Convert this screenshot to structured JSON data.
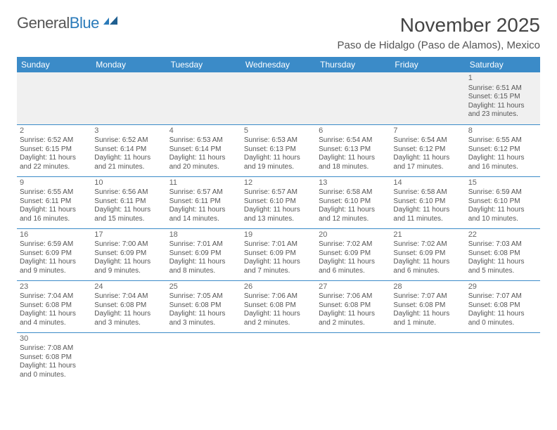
{
  "logo": {
    "general": "General",
    "blue": "Blue"
  },
  "title": "November 2025",
  "location": "Paso de Hidalgo (Paso de Alamos), Mexico",
  "colors": {
    "header_bg": "#3b8bc8",
    "header_fg": "#ffffff",
    "rule": "#3b8bc8",
    "blank_bg": "#f0f0f0",
    "text": "#555555",
    "title_text": "#444444",
    "logo_gray": "#555555",
    "logo_blue": "#2a7ab9"
  },
  "weekdays": [
    "Sunday",
    "Monday",
    "Tuesday",
    "Wednesday",
    "Thursday",
    "Friday",
    "Saturday"
  ],
  "weeks": [
    [
      null,
      null,
      null,
      null,
      null,
      null,
      {
        "n": "1",
        "sr": "Sunrise: 6:51 AM",
        "ss": "Sunset: 6:15 PM",
        "dl": "Daylight: 11 hours and 23 minutes."
      }
    ],
    [
      {
        "n": "2",
        "sr": "Sunrise: 6:52 AM",
        "ss": "Sunset: 6:15 PM",
        "dl": "Daylight: 11 hours and 22 minutes."
      },
      {
        "n": "3",
        "sr": "Sunrise: 6:52 AM",
        "ss": "Sunset: 6:14 PM",
        "dl": "Daylight: 11 hours and 21 minutes."
      },
      {
        "n": "4",
        "sr": "Sunrise: 6:53 AM",
        "ss": "Sunset: 6:14 PM",
        "dl": "Daylight: 11 hours and 20 minutes."
      },
      {
        "n": "5",
        "sr": "Sunrise: 6:53 AM",
        "ss": "Sunset: 6:13 PM",
        "dl": "Daylight: 11 hours and 19 minutes."
      },
      {
        "n": "6",
        "sr": "Sunrise: 6:54 AM",
        "ss": "Sunset: 6:13 PM",
        "dl": "Daylight: 11 hours and 18 minutes."
      },
      {
        "n": "7",
        "sr": "Sunrise: 6:54 AM",
        "ss": "Sunset: 6:12 PM",
        "dl": "Daylight: 11 hours and 17 minutes."
      },
      {
        "n": "8",
        "sr": "Sunrise: 6:55 AM",
        "ss": "Sunset: 6:12 PM",
        "dl": "Daylight: 11 hours and 16 minutes."
      }
    ],
    [
      {
        "n": "9",
        "sr": "Sunrise: 6:55 AM",
        "ss": "Sunset: 6:11 PM",
        "dl": "Daylight: 11 hours and 16 minutes."
      },
      {
        "n": "10",
        "sr": "Sunrise: 6:56 AM",
        "ss": "Sunset: 6:11 PM",
        "dl": "Daylight: 11 hours and 15 minutes."
      },
      {
        "n": "11",
        "sr": "Sunrise: 6:57 AM",
        "ss": "Sunset: 6:11 PM",
        "dl": "Daylight: 11 hours and 14 minutes."
      },
      {
        "n": "12",
        "sr": "Sunrise: 6:57 AM",
        "ss": "Sunset: 6:10 PM",
        "dl": "Daylight: 11 hours and 13 minutes."
      },
      {
        "n": "13",
        "sr": "Sunrise: 6:58 AM",
        "ss": "Sunset: 6:10 PM",
        "dl": "Daylight: 11 hours and 12 minutes."
      },
      {
        "n": "14",
        "sr": "Sunrise: 6:58 AM",
        "ss": "Sunset: 6:10 PM",
        "dl": "Daylight: 11 hours and 11 minutes."
      },
      {
        "n": "15",
        "sr": "Sunrise: 6:59 AM",
        "ss": "Sunset: 6:10 PM",
        "dl": "Daylight: 11 hours and 10 minutes."
      }
    ],
    [
      {
        "n": "16",
        "sr": "Sunrise: 6:59 AM",
        "ss": "Sunset: 6:09 PM",
        "dl": "Daylight: 11 hours and 9 minutes."
      },
      {
        "n": "17",
        "sr": "Sunrise: 7:00 AM",
        "ss": "Sunset: 6:09 PM",
        "dl": "Daylight: 11 hours and 9 minutes."
      },
      {
        "n": "18",
        "sr": "Sunrise: 7:01 AM",
        "ss": "Sunset: 6:09 PM",
        "dl": "Daylight: 11 hours and 8 minutes."
      },
      {
        "n": "19",
        "sr": "Sunrise: 7:01 AM",
        "ss": "Sunset: 6:09 PM",
        "dl": "Daylight: 11 hours and 7 minutes."
      },
      {
        "n": "20",
        "sr": "Sunrise: 7:02 AM",
        "ss": "Sunset: 6:09 PM",
        "dl": "Daylight: 11 hours and 6 minutes."
      },
      {
        "n": "21",
        "sr": "Sunrise: 7:02 AM",
        "ss": "Sunset: 6:09 PM",
        "dl": "Daylight: 11 hours and 6 minutes."
      },
      {
        "n": "22",
        "sr": "Sunrise: 7:03 AM",
        "ss": "Sunset: 6:08 PM",
        "dl": "Daylight: 11 hours and 5 minutes."
      }
    ],
    [
      {
        "n": "23",
        "sr": "Sunrise: 7:04 AM",
        "ss": "Sunset: 6:08 PM",
        "dl": "Daylight: 11 hours and 4 minutes."
      },
      {
        "n": "24",
        "sr": "Sunrise: 7:04 AM",
        "ss": "Sunset: 6:08 PM",
        "dl": "Daylight: 11 hours and 3 minutes."
      },
      {
        "n": "25",
        "sr": "Sunrise: 7:05 AM",
        "ss": "Sunset: 6:08 PM",
        "dl": "Daylight: 11 hours and 3 minutes."
      },
      {
        "n": "26",
        "sr": "Sunrise: 7:06 AM",
        "ss": "Sunset: 6:08 PM",
        "dl": "Daylight: 11 hours and 2 minutes."
      },
      {
        "n": "27",
        "sr": "Sunrise: 7:06 AM",
        "ss": "Sunset: 6:08 PM",
        "dl": "Daylight: 11 hours and 2 minutes."
      },
      {
        "n": "28",
        "sr": "Sunrise: 7:07 AM",
        "ss": "Sunset: 6:08 PM",
        "dl": "Daylight: 11 hours and 1 minute."
      },
      {
        "n": "29",
        "sr": "Sunrise: 7:07 AM",
        "ss": "Sunset: 6:08 PM",
        "dl": "Daylight: 11 hours and 0 minutes."
      }
    ],
    [
      {
        "n": "30",
        "sr": "Sunrise: 7:08 AM",
        "ss": "Sunset: 6:08 PM",
        "dl": "Daylight: 11 hours and 0 minutes."
      },
      null,
      null,
      null,
      null,
      null,
      null
    ]
  ]
}
